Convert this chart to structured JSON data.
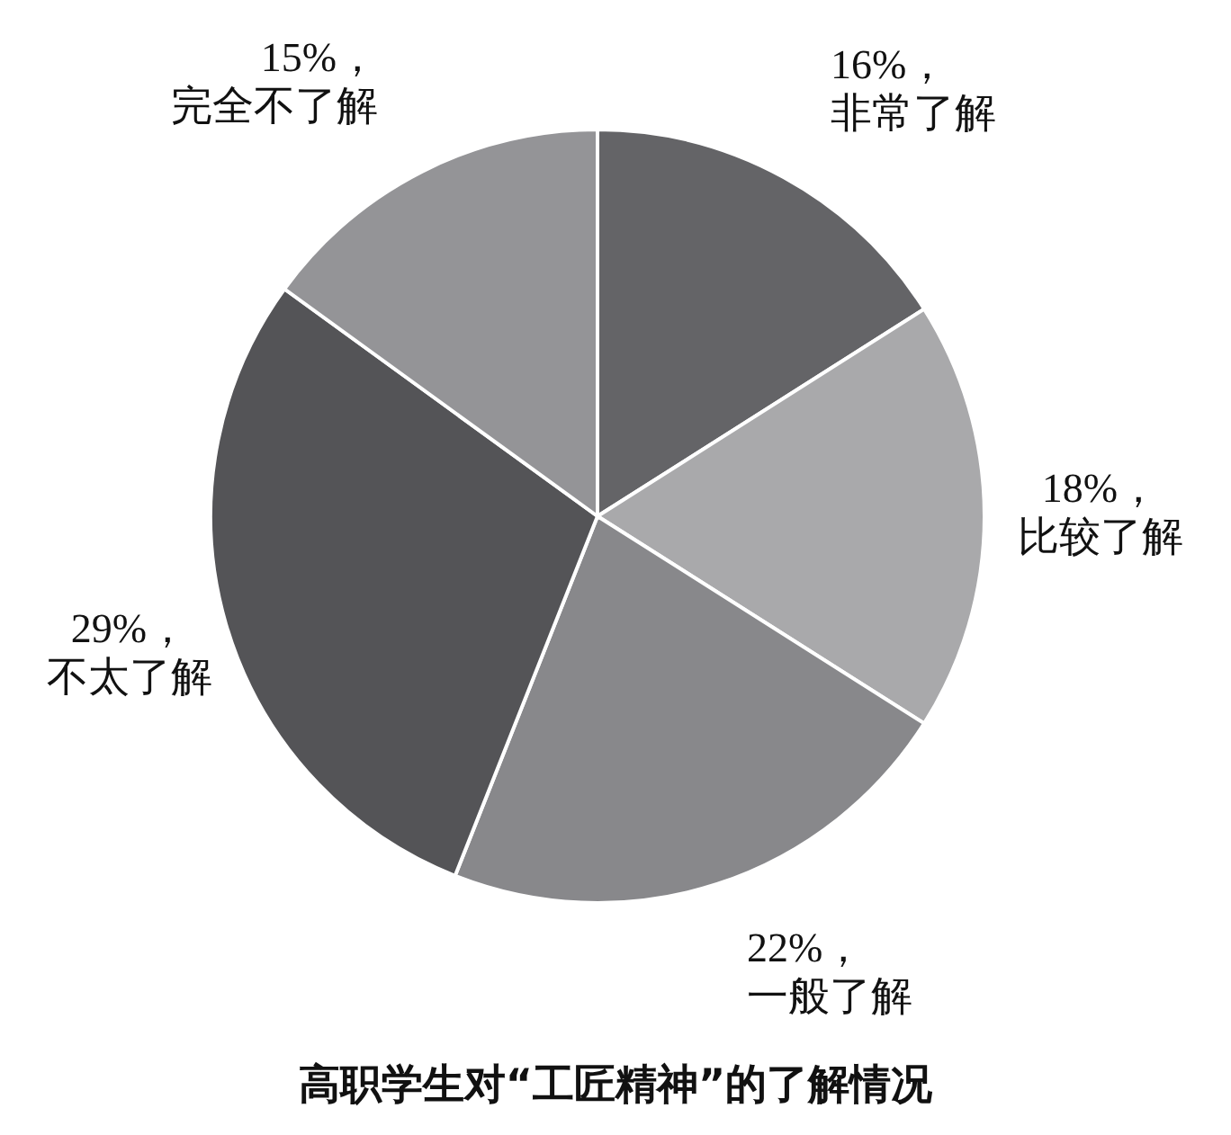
{
  "chart_data": {
    "type": "pie",
    "title": "高职学生对“工匠精神”的了解情况",
    "categories": [
      "非常了解",
      "比较了解",
      "一般了解",
      "不太了解",
      "完全不了解"
    ],
    "values": [
      16,
      18,
      22,
      29,
      15
    ],
    "value_labels": [
      "16%，",
      "18%，",
      "22%，",
      "29%，",
      "15%，"
    ],
    "colors": [
      "#646467",
      "#a9a9ab",
      "#88888b",
      "#545457",
      "#949497"
    ]
  }
}
